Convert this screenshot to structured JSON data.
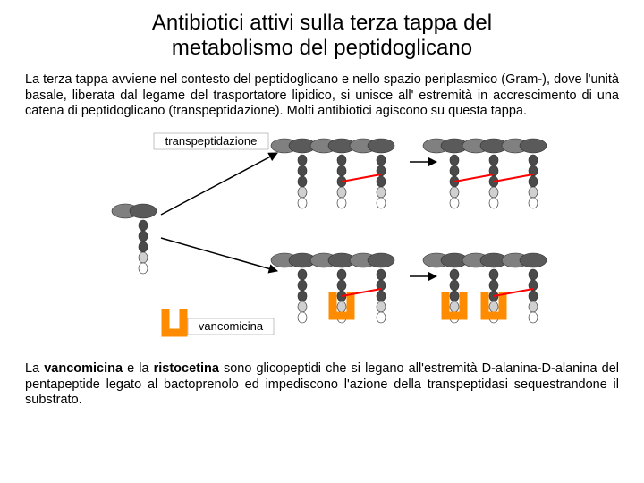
{
  "title_line1": "Antibiotici attivi sulla terza tappa del",
  "title_line2": "metabolismo del peptidoglicano",
  "para1": "La terza tappa avviene nel contesto del peptidoglicano e nello spazio periplasmico (Gram-), dove l'unità basale, liberata dal legame del trasportatore lipidico, si unisce all' estremità in accrescimento di una catena di peptidoglicano (transpeptidazione). Molti antibiotici agiscono su questa tappa.",
  "para2_pre": "La ",
  "para2_b1": "vancomicina",
  "para2_mid1": " e la ",
  "para2_b2": "ristocetina",
  "para2_post": " sono glicopeptidi che si legano all'estremità D-alanina-D-alanina del pentapeptide legato al bactoprenolo ed impediscono l'azione della transpeptidasi sequestrandone il substrato.",
  "diagram": {
    "label_transpeptidazione": "transpeptidazione",
    "label_vancomicina": "vancomicina",
    "colors": {
      "sugar_glcnac": "#808080",
      "sugar_murnac": "#5a5a5a",
      "peptide": "#4a4a4a",
      "dala_top": "#d0d0d0",
      "dala_bottom": "#ffffff",
      "crosslink": "#ff0000",
      "arrow": "#000000",
      "vanco": "#ff8c00",
      "label_fill": "#ffffff",
      "label_text": "#000000",
      "outline": "#303030"
    },
    "font_label": 13
  }
}
